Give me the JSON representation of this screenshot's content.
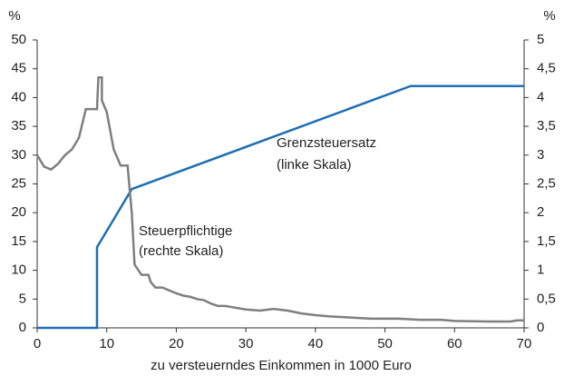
{
  "chart_data": {
    "type": "line",
    "xlabel": "zu versteuerndes Einkommen in 1000 Euro",
    "ylabel": "%",
    "y2label": "%",
    "xlim": [
      0,
      70
    ],
    "xticks": [
      0,
      10,
      20,
      30,
      40,
      50,
      60,
      70
    ],
    "ylim": [
      0,
      50
    ],
    "yticks": [
      0,
      5,
      10,
      15,
      20,
      25,
      30,
      35,
      40,
      45,
      50
    ],
    "y2lim": [
      0,
      5
    ],
    "y2ticks": [
      0,
      {
        "value": 0.5,
        "label": "0,5"
      },
      1,
      {
        "value": 1.5,
        "label": "1,5"
      },
      2,
      {
        "value": 2.5,
        "label": "2,5"
      },
      3,
      {
        "value": 3.5,
        "label": "3,5"
      },
      4,
      {
        "value": 4.5,
        "label": "4,5"
      },
      5
    ],
    "series": [
      {
        "name": "Grenzsteuersatz",
        "color": "#1f6fb4",
        "axis": "y",
        "x": [
          0,
          8.6,
          8.6,
          13.6,
          53.7,
          70
        ],
        "values": [
          0,
          0,
          14,
          24.1,
          42,
          42
        ]
      },
      {
        "name": "Steuerpflichtige",
        "color": "#7f7f7f",
        "axis": "y2",
        "x": [
          0,
          1,
          2,
          3,
          4,
          5,
          6,
          7,
          8,
          8.6,
          8.8,
          9.3,
          9.3,
          10,
          11,
          12,
          13,
          13.3,
          13.6,
          14,
          15,
          16,
          16.3,
          17,
          18,
          19,
          20,
          21,
          22,
          23,
          24,
          25,
          26,
          27,
          28,
          30,
          32,
          34,
          36,
          38,
          40,
          42,
          45,
          48,
          52,
          55,
          58,
          60,
          65,
          68,
          69,
          70
        ],
        "values": [
          3.0,
          2.8,
          2.75,
          2.85,
          3.0,
          3.1,
          3.3,
          3.8,
          3.8,
          3.8,
          4.35,
          4.35,
          3.95,
          3.75,
          3.1,
          2.82,
          2.82,
          2.4,
          2.0,
          1.1,
          0.92,
          0.92,
          0.8,
          0.7,
          0.7,
          0.65,
          0.6,
          0.56,
          0.54,
          0.5,
          0.48,
          0.42,
          0.38,
          0.38,
          0.36,
          0.32,
          0.3,
          0.33,
          0.3,
          0.25,
          0.22,
          0.2,
          0.18,
          0.16,
          0.16,
          0.14,
          0.14,
          0.12,
          0.11,
          0.11,
          0.13,
          0.13
        ]
      }
    ],
    "annotations": [
      "Grenzsteuersatz",
      "(linke Skala)",
      "Steuerpflichtige",
      "(rechte Skala)"
    ]
  }
}
